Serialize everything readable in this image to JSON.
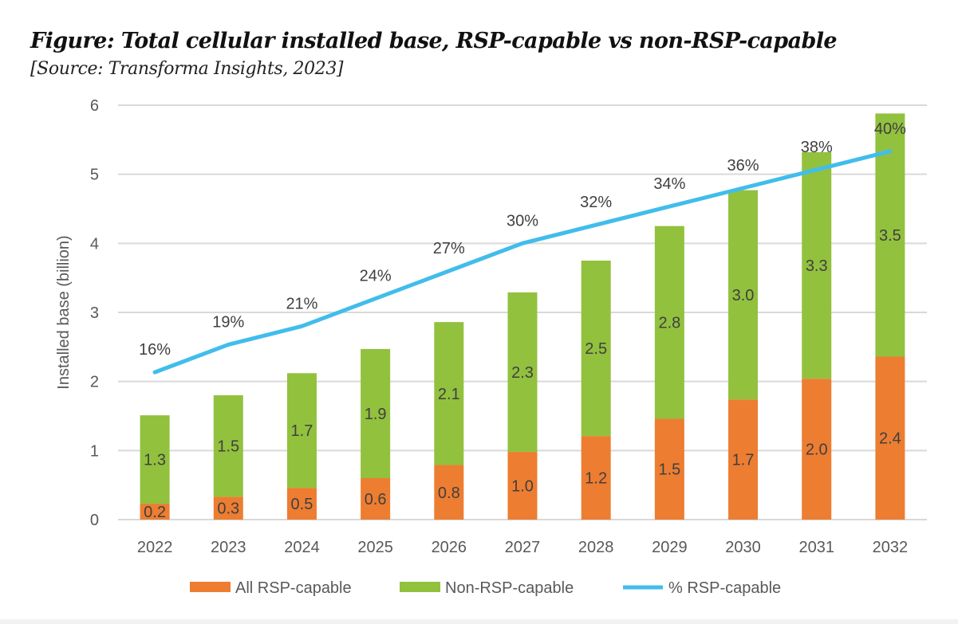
{
  "chart_data": {
    "type": "bar",
    "stacked": true,
    "title": "Figure: Total cellular installed base, RSP-capable vs non-RSP-capable",
    "subtitle": "[Source: Transforma Insights, 2023]",
    "ylabel": "Installed base (billion)",
    "xlabel": "",
    "ylim": [
      0,
      6
    ],
    "yticks": [
      "0",
      "1",
      "2",
      "3",
      "4",
      "5",
      "6"
    ],
    "secondary_ylim_percent": [
      0,
      45
    ],
    "grid": true,
    "legend_position": "bottom",
    "categories": [
      "2022",
      "2023",
      "2024",
      "2025",
      "2026",
      "2027",
      "2028",
      "2029",
      "2030",
      "2031",
      "2032"
    ],
    "series": [
      {
        "name": "All RSP-capable",
        "type": "bar",
        "color": "#ED7D31",
        "values": [
          0.23,
          0.33,
          0.46,
          0.6,
          0.79,
          0.98,
          1.21,
          1.46,
          1.74,
          2.04,
          2.36
        ],
        "labels": [
          "0.2",
          "0.3",
          "0.5",
          "0.6",
          "0.8",
          "1.0",
          "1.2",
          "1.5",
          "1.7",
          "2.0",
          "2.4"
        ]
      },
      {
        "name": "Non-RSP-capable",
        "type": "bar",
        "color": "#92C13E",
        "values": [
          1.28,
          1.47,
          1.66,
          1.87,
          2.07,
          2.31,
          2.54,
          2.79,
          3.03,
          3.28,
          3.52
        ],
        "labels": [
          "1.3",
          "1.5",
          "1.7",
          "1.9",
          "2.1",
          "2.3",
          "2.5",
          "2.8",
          "3.0",
          "3.3",
          "3.5"
        ]
      },
      {
        "name": "% RSP-capable",
        "type": "line",
        "color": "#41BDEB",
        "axis": "secondary",
        "values": [
          16,
          19,
          21,
          24,
          27,
          30,
          32,
          34,
          36,
          38,
          40
        ],
        "labels": [
          "16%",
          "19%",
          "21%",
          "24%",
          "27%",
          "30%",
          "32%",
          "34%",
          "36%",
          "38%",
          "40%"
        ]
      }
    ]
  }
}
